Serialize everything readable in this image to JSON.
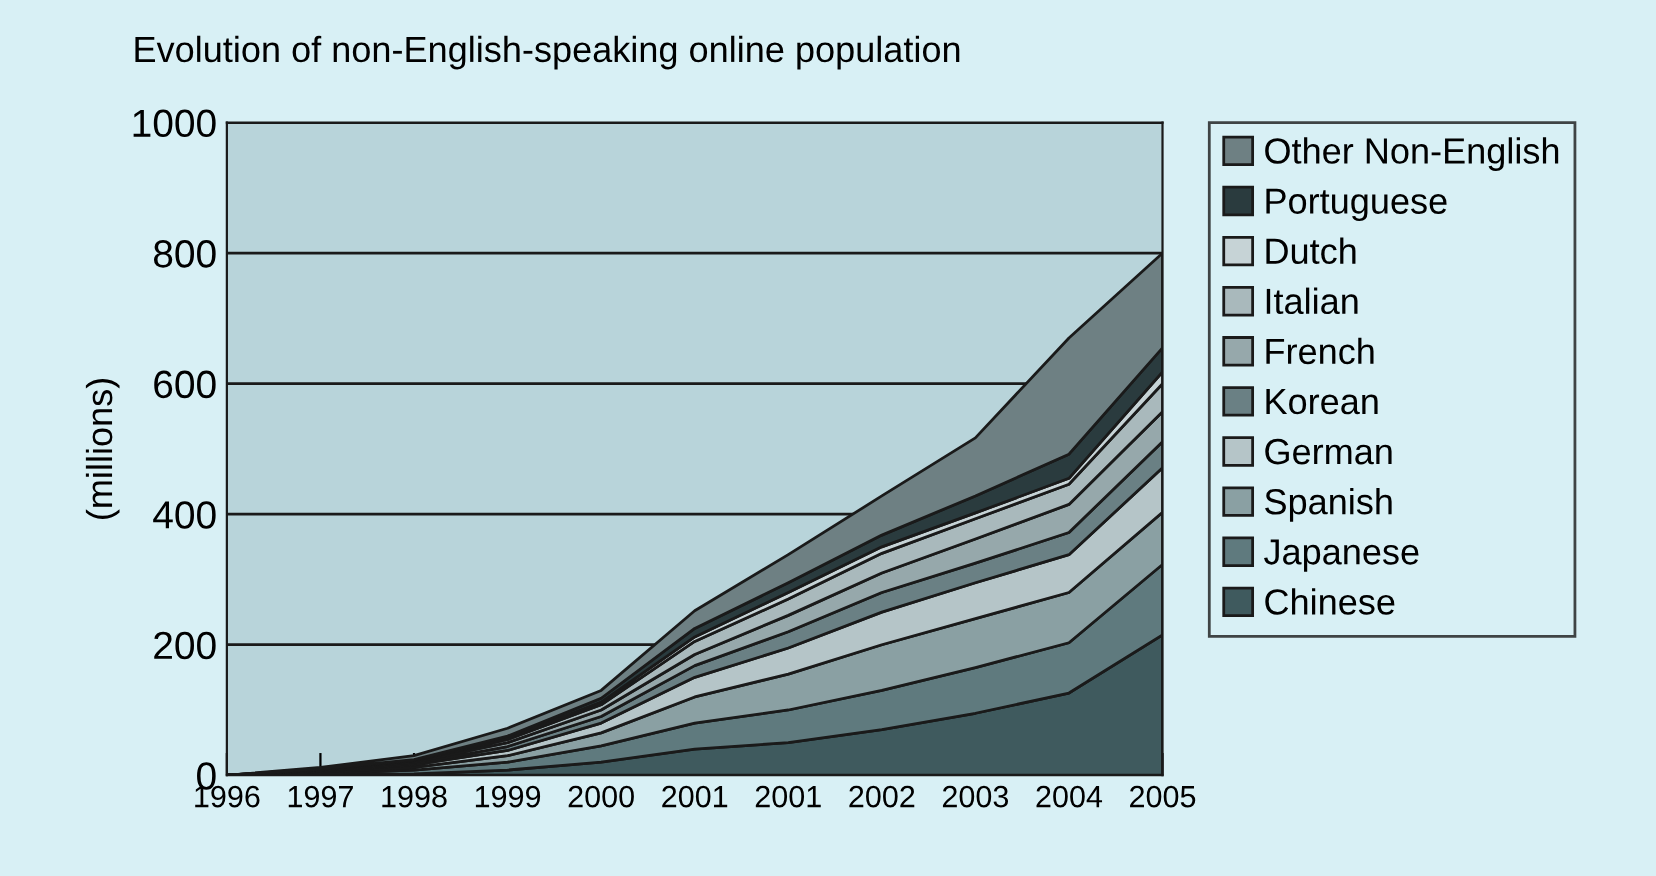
{
  "chart_data": {
    "type": "area",
    "stacked": true,
    "title": "Evolution of non-English-speaking online population",
    "ylabel": "(millions)",
    "categories": [
      "1996",
      "1997",
      "1998",
      "1999",
      "2000",
      "2001",
      "2001",
      "2002",
      "2003",
      "2004",
      "2005"
    ],
    "series": [
      {
        "name": "Chinese",
        "color": "#3f5a5e",
        "values": [
          0,
          1,
          2,
          8,
          20,
          40,
          50,
          70,
          95,
          126,
          215
        ]
      },
      {
        "name": "Japanese",
        "color": "#5f7a7e",
        "values": [
          0,
          2,
          6,
          12,
          25,
          40,
          50,
          60,
          70,
          77,
          108
        ]
      },
      {
        "name": "Spanish",
        "color": "#8aa0a3",
        "values": [
          0,
          2,
          4,
          10,
          20,
          40,
          55,
          70,
          75,
          77,
          80
        ]
      },
      {
        "name": "German",
        "color": "#b5c5c8",
        "values": [
          0,
          1,
          4,
          8,
          15,
          30,
          40,
          50,
          55,
          58,
          68
        ]
      },
      {
        "name": "Korean",
        "color": "#6a8084",
        "values": [
          0,
          1,
          2,
          6,
          10,
          18,
          25,
          30,
          30,
          34,
          40
        ]
      },
      {
        "name": "French",
        "color": "#96a8ab",
        "values": [
          0,
          1,
          2,
          6,
          10,
          17,
          25,
          30,
          37,
          43,
          46
        ]
      },
      {
        "name": "Italian",
        "color": "#a9b9bc",
        "values": [
          0,
          1,
          2,
          5,
          8,
          20,
          25,
          30,
          31,
          31,
          43
        ]
      },
      {
        "name": "Dutch",
        "color": "#c6d3d6",
        "values": [
          0,
          0,
          1,
          2,
          4,
          7,
          10,
          10,
          9,
          9,
          18
        ]
      },
      {
        "name": "Portuguese",
        "color": "#2a3b3e",
        "values": [
          0,
          1,
          1,
          3,
          6,
          13,
          15,
          18,
          26,
          37,
          37
        ]
      },
      {
        "name": "Other Non-English",
        "color": "#6e8083",
        "values": [
          0,
          2,
          6,
          12,
          12,
          27,
          43,
          60,
          89,
          178,
          145
        ]
      }
    ],
    "ylim": [
      0,
      1000
    ],
    "yticks": [
      0,
      200,
      400,
      600,
      800,
      1000
    ],
    "grid": "y",
    "legend": "right"
  }
}
